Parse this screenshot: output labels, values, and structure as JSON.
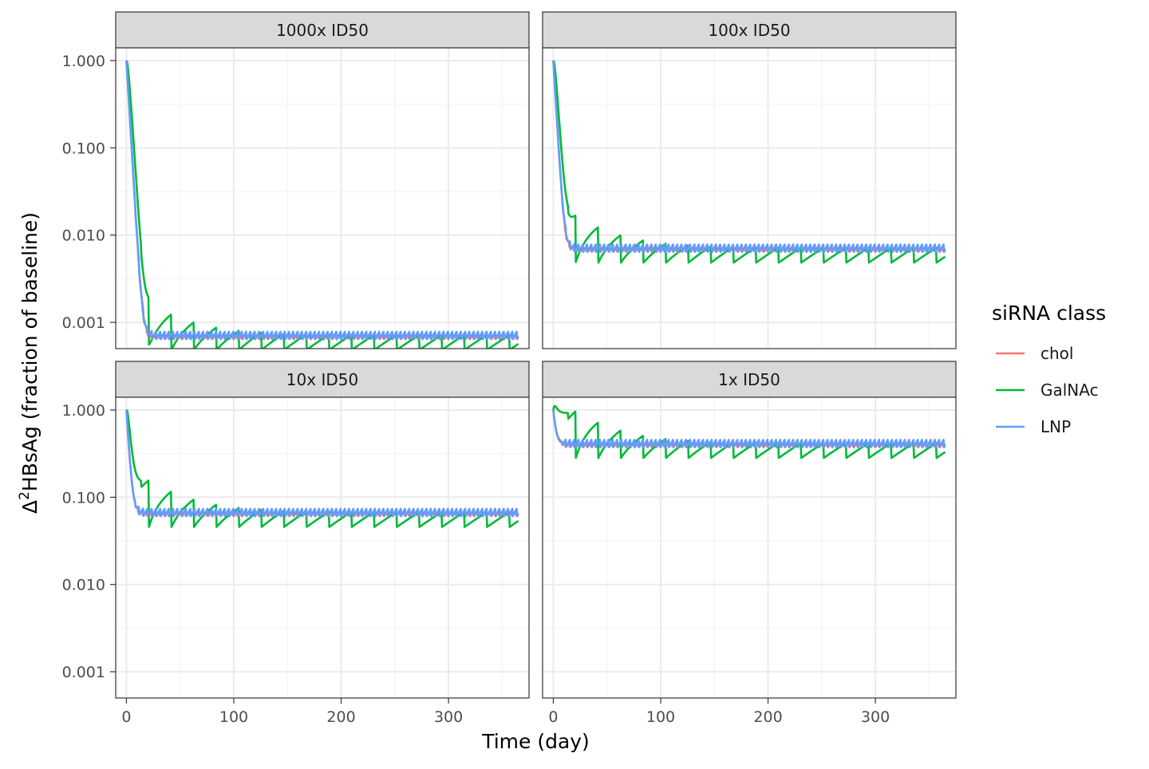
{
  "chart_data": {
    "type": "line",
    "facet_layout": "2x2",
    "xlabel": "Time (day)",
    "ylabel_delta": "Δ",
    "ylabel_sup": "2",
    "ylabel_rest": "HBsAg (fraction of baseline)",
    "y_scale": "log10",
    "xlim": [
      -10,
      375
    ],
    "ylim": [
      0.0005,
      1.4
    ],
    "x_ticks": [
      0,
      100,
      200,
      300
    ],
    "x_tick_labels": [
      "0",
      "100",
      "200",
      "300"
    ],
    "y_ticks": [
      1,
      0.1,
      0.01,
      0.001
    ],
    "y_tick_labels": [
      "1.000",
      "0.100",
      "0.010",
      "0.001"
    ],
    "grid": true,
    "legend": {
      "title": "siRNA class",
      "placement": "right",
      "entries": [
        {
          "name": "chol",
          "color": "#F8766D"
        },
        {
          "name": "GalNAc",
          "color": "#00BA38"
        },
        {
          "name": "LNP",
          "color": "#619CFF"
        }
      ]
    },
    "panels": [
      {
        "label": "1000x ID50",
        "steady": 0.00072
      },
      {
        "label": "100x ID50",
        "steady": 0.0072
      },
      {
        "label": "10x ID50",
        "steady": 0.068
      },
      {
        "label": "1x ID50",
        "steady": 0.42
      }
    ],
    "dosing": {
      "GalNAc_interval_days": 21,
      "LNP_interval_days": 4,
      "chol_interval_days": 4,
      "duration_days": 365
    }
  }
}
